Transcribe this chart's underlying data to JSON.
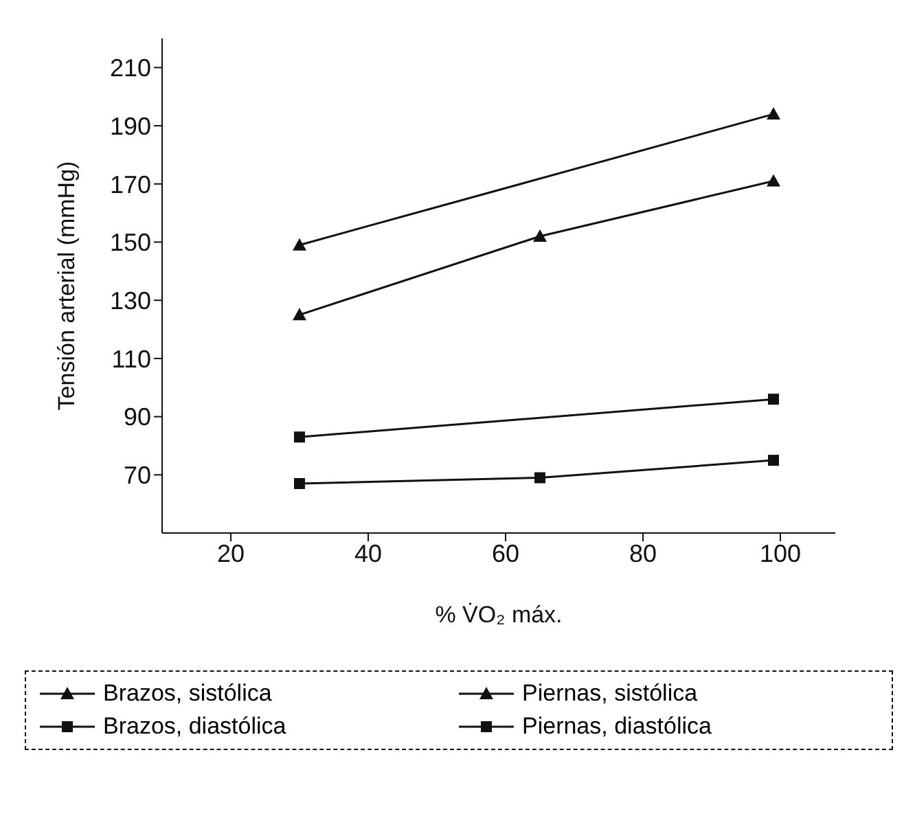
{
  "chart_data": {
    "type": "line",
    "xlabel": "% V̇O₂ máx.",
    "ylabel": "Tensión arterial (mmHg)",
    "xlim": [
      10,
      108
    ],
    "xticks": [
      20,
      40,
      60,
      80,
      100
    ],
    "ylim": [
      50,
      220
    ],
    "yticks": [
      70,
      90,
      110,
      130,
      150,
      170,
      190,
      210
    ],
    "grid": false,
    "legend": "bottom",
    "series": [
      {
        "name": "Brazos, sistólica",
        "color": "#111111",
        "marker": "triangle",
        "x": [
          30,
          99
        ],
        "values": [
          149,
          194
        ]
      },
      {
        "name": "Piernas, sistólica",
        "color": "#111111",
        "marker": "triangle",
        "x": [
          30,
          65,
          99
        ],
        "values": [
          125,
          152,
          171
        ]
      },
      {
        "name": "Brazos, diastólica",
        "color": "#111111",
        "marker": "square",
        "x": [
          30,
          99
        ],
        "values": [
          83,
          96
        ]
      },
      {
        "name": "Piernas, diastólica",
        "color": "#111111",
        "marker": "square",
        "x": [
          30,
          65,
          99
        ],
        "values": [
          67,
          69,
          75
        ]
      }
    ]
  }
}
